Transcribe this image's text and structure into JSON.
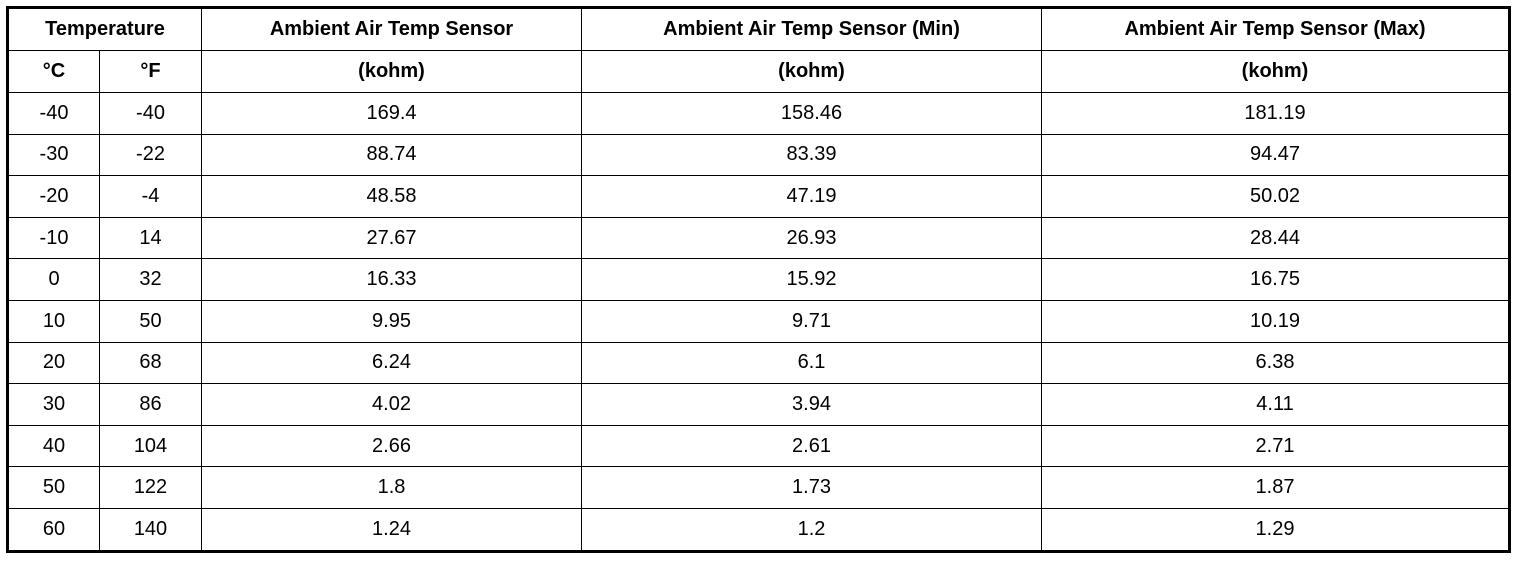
{
  "header": {
    "group": "Temperature",
    "units_temp": [
      "°C",
      "°F"
    ],
    "columns": [
      "Ambient Air Temp Sensor",
      "Ambient Air Temp Sensor (Min)",
      "Ambient Air Temp Sensor (Max)"
    ],
    "units": [
      "(kohm)",
      "(kohm)",
      "(kohm)"
    ]
  },
  "table": {
    "rows": [
      [
        -40,
        -40,
        169.4,
        158.46,
        181.19
      ],
      [
        -30,
        -22,
        88.74,
        83.39,
        94.47
      ],
      [
        -20,
        -4,
        48.58,
        47.19,
        50.02
      ],
      [
        -10,
        14,
        27.67,
        26.93,
        28.44
      ],
      [
        0,
        32,
        16.33,
        15.92,
        16.75
      ],
      [
        10,
        50,
        9.95,
        9.71,
        10.19
      ],
      [
        20,
        68,
        6.24,
        6.1,
        6.38
      ],
      [
        30,
        86,
        4.02,
        3.94,
        4.11
      ],
      [
        40,
        104,
        2.66,
        2.61,
        2.71
      ],
      [
        50,
        122,
        1.8,
        1.73,
        1.87
      ],
      [
        60,
        140,
        1.24,
        1.2,
        1.29
      ]
    ]
  }
}
